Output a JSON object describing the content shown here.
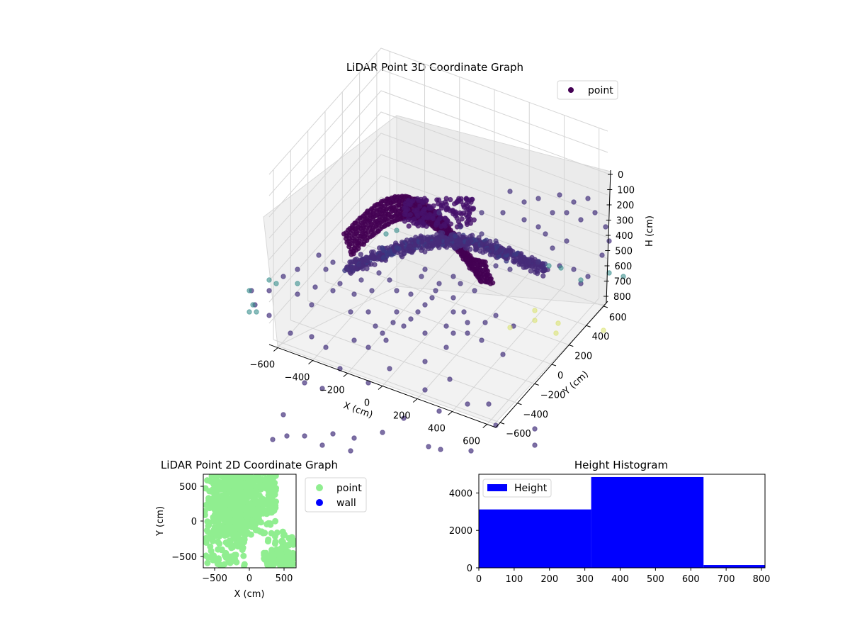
{
  "chart_data": [
    {
      "type": "scatter",
      "projection": "3d",
      "title": "LiDAR Point 3D Coordinate Graph",
      "xlabel": "X (cm)",
      "ylabel": "Y (cm)",
      "zlabel": "H (cm)",
      "xlim": [
        -650,
        650
      ],
      "ylim": [
        -650,
        650
      ],
      "zlim": [
        800,
        0
      ],
      "xticks": [
        "−600",
        "−400",
        "−200",
        "0",
        "200",
        "400",
        "600"
      ],
      "yticks": [
        "−600",
        "−400",
        "−200",
        "0",
        "200",
        "400",
        "600"
      ],
      "zticks": [
        "0",
        "100",
        "200",
        "300",
        "400",
        "500",
        "600",
        "700",
        "800"
      ],
      "legend": {
        "placement": "top-right",
        "entries": [
          "point"
        ]
      },
      "colormap": "viridis",
      "series": [
        {
          "name": "point",
          "color": "#440154",
          "groups": [
            {
              "desc": "curved wall arc (high)",
              "x": [
                -450,
                -250,
                0,
                250,
                450,
                600
              ],
              "y": [
                350,
                520,
                560,
                500,
                350,
                150
              ],
              "h": [
                300,
                180,
                130,
                150,
                250,
                380
              ]
            },
            {
              "desc": "lower inner surface",
              "x": [
                -400,
                -200,
                0,
                200,
                400
              ],
              "y": [
                -100,
                0,
                50,
                0,
                -100
              ],
              "h": [
                520,
                500,
                480,
                500,
                520
              ]
            },
            {
              "desc": "floor scatter",
              "x": [
                -600,
                -400,
                -200,
                0,
                200,
                400,
                600
              ],
              "y": [
                -600,
                -400,
                -200,
                0,
                200,
                400,
                600
              ],
              "h": [
                780,
                760,
                740,
                720,
                740,
                760,
                780
              ]
            }
          ]
        }
      ]
    },
    {
      "type": "scatter",
      "title": "LiDAR Point 2D Coordinate Graph",
      "xlabel": "X (cm)",
      "ylabel": "Y (cm)",
      "xlim": [
        -670,
        670
      ],
      "ylim": [
        -670,
        670
      ],
      "xticks": [
        "−500",
        "0",
        "500"
      ],
      "yticks": [
        "500",
        "0",
        "−500"
      ],
      "legend": {
        "placement": "outside-right",
        "entries": [
          "point",
          "wall"
        ]
      },
      "series": [
        {
          "name": "point",
          "color": "#90ee90"
        },
        {
          "name": "wall",
          "color": "#0000ff"
        }
      ]
    },
    {
      "type": "bar",
      "title": "Height Histogram",
      "xlim": [
        0,
        810
      ],
      "ylim": [
        0,
        5000
      ],
      "xticks": [
        "0",
        "100",
        "200",
        "300",
        "400",
        "500",
        "600",
        "700",
        "800"
      ],
      "yticks": [
        "0",
        "2000",
        "4000"
      ],
      "legend": {
        "placement": "top-left",
        "entries": [
          "Height"
        ]
      },
      "series": [
        {
          "name": "Height",
          "color": "#0000ff",
          "bins": [
            {
              "x0": 0,
              "x1": 318,
              "value": 3120
            },
            {
              "x0": 318,
              "x1": 636,
              "value": 4850
            },
            {
              "x0": 636,
              "x1": 810,
              "value": 150
            }
          ]
        }
      ]
    }
  ]
}
